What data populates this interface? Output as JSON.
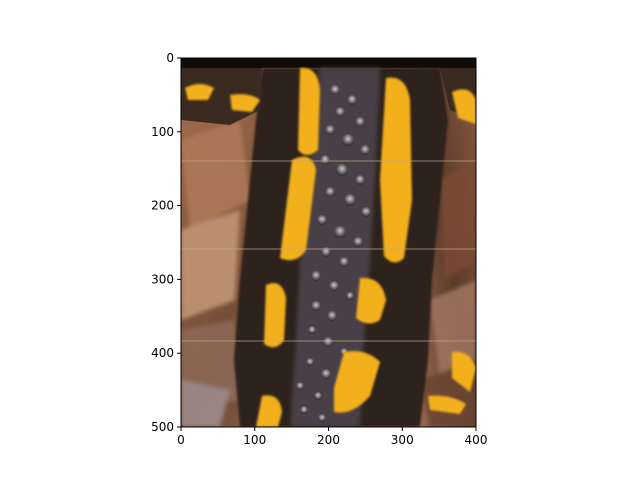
{
  "figure": {
    "x_ticks": [
      {
        "value": 0,
        "label": "0"
      },
      {
        "value": 100,
        "label": "100"
      },
      {
        "value": 200,
        "label": "200"
      },
      {
        "value": 300,
        "label": "300"
      },
      {
        "value": 400,
        "label": "400"
      }
    ],
    "y_ticks": [
      {
        "value": 0,
        "label": "0"
      },
      {
        "value": 100,
        "label": "100"
      },
      {
        "value": 200,
        "label": "200"
      },
      {
        "value": 300,
        "label": "300"
      },
      {
        "value": 400,
        "label": "400"
      },
      {
        "value": 500,
        "label": "500"
      }
    ],
    "x_range": [
      0,
      400
    ],
    "y_range": [
      0,
      500
    ],
    "y_inverted": true,
    "subject": "salamander-skin-closeup",
    "colors": {
      "skin": "#2a1f18",
      "spots": "#f2b01a",
      "belly_highlight": "#8f8a8a",
      "leaf_litter": "#9a6a4a"
    }
  }
}
